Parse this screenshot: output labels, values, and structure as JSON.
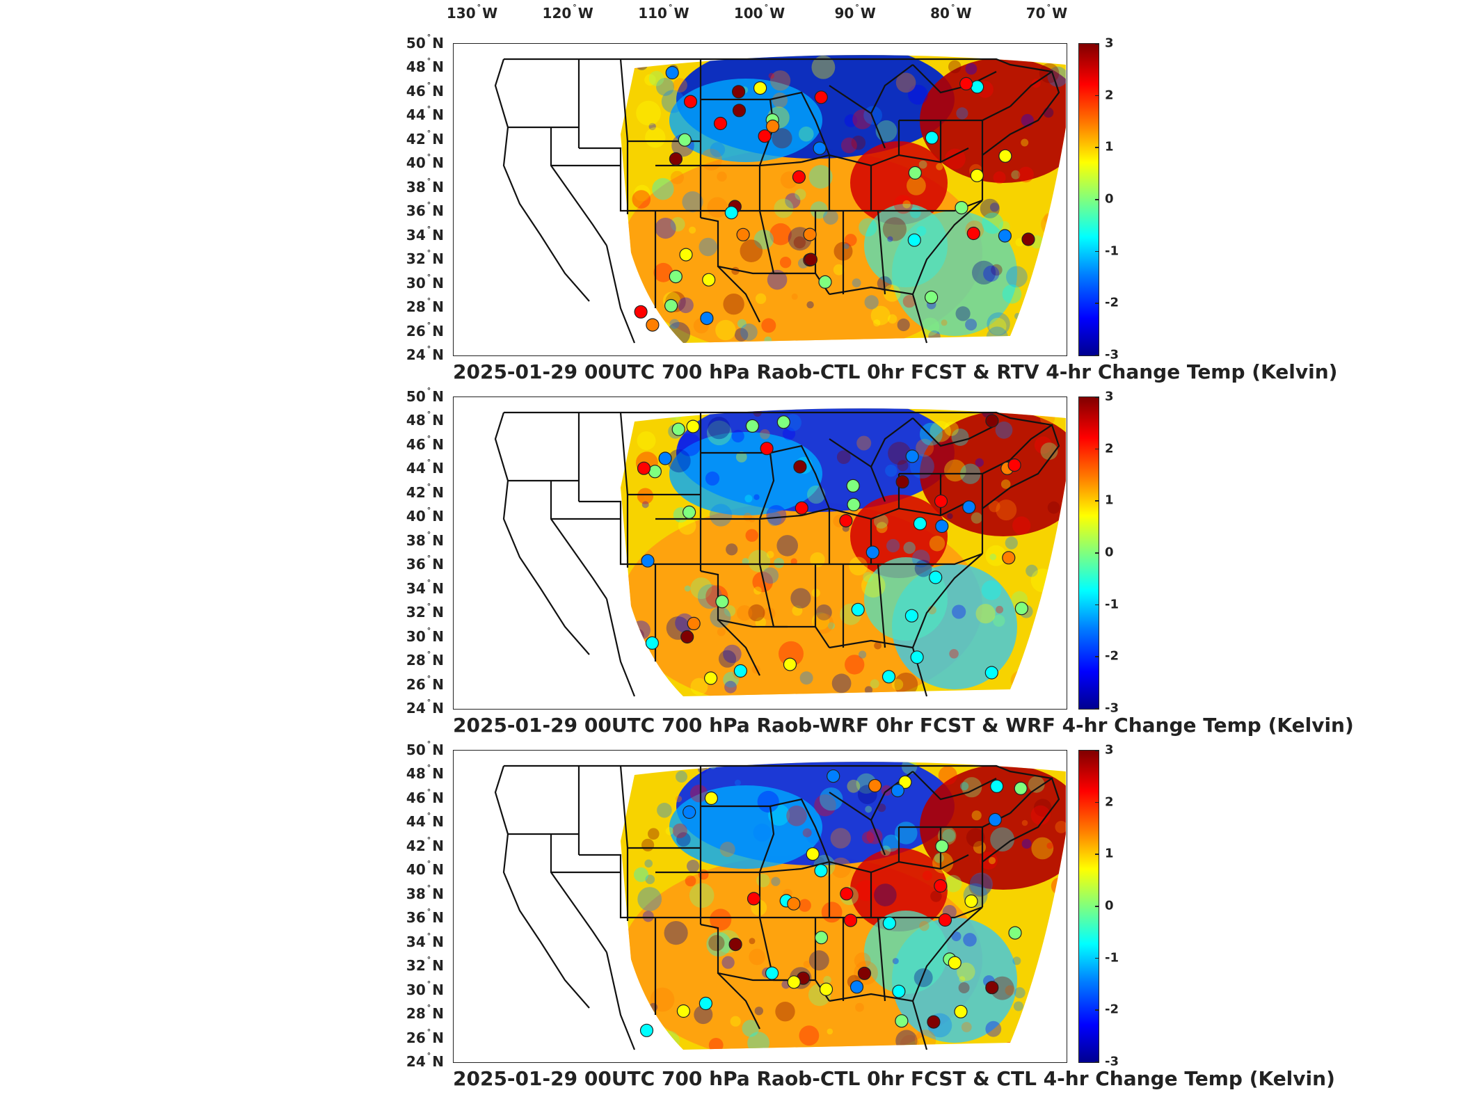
{
  "longitude_labels": [
    {
      "deg": "130",
      "hemi": "W"
    },
    {
      "deg": "120",
      "hemi": "W"
    },
    {
      "deg": "110",
      "hemi": "W"
    },
    {
      "deg": "100",
      "hemi": "W"
    },
    {
      "deg": "90",
      "hemi": "W"
    },
    {
      "deg": "80",
      "hemi": "W"
    },
    {
      "deg": "70",
      "hemi": "W"
    }
  ],
  "latitude_labels": [
    {
      "deg": "50",
      "hemi": "N"
    },
    {
      "deg": "48",
      "hemi": "N"
    },
    {
      "deg": "46",
      "hemi": "N"
    },
    {
      "deg": "44",
      "hemi": "N"
    },
    {
      "deg": "42",
      "hemi": "N"
    },
    {
      "deg": "40",
      "hemi": "N"
    },
    {
      "deg": "38",
      "hemi": "N"
    },
    {
      "deg": "36",
      "hemi": "N"
    },
    {
      "deg": "34",
      "hemi": "N"
    },
    {
      "deg": "32",
      "hemi": "N"
    },
    {
      "deg": "30",
      "hemi": "N"
    },
    {
      "deg": "28",
      "hemi": "N"
    },
    {
      "deg": "26",
      "hemi": "N"
    },
    {
      "deg": "24",
      "hemi": "N"
    }
  ],
  "colorbar": {
    "ticks": [
      "3",
      "2",
      "1",
      "0",
      "-1",
      "-2",
      "-3"
    ],
    "colormap": "jet",
    "range": [
      -3,
      3
    ]
  },
  "panels": [
    {
      "title": "2025-01-29 00UTC 700 hPa Raob-CTL 0hr FCST & RTV 4-hr Change Temp (Kelvin)"
    },
    {
      "title": "2025-01-29 00UTC 700 hPa Raob-WRF 0hr FCST & WRF 4-hr Change Temp (Kelvin)"
    },
    {
      "title": "2025-01-29 00UTC 700 hPa Raob-CTL 0hr FCST & CTL 4-hr Change Temp (Kelvin)"
    }
  ]
}
